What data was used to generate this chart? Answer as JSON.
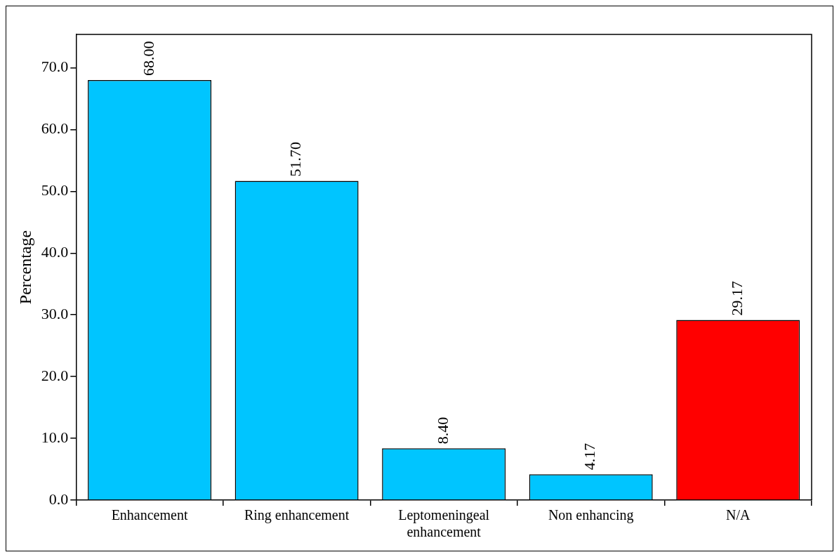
{
  "chart_data": {
    "type": "bar",
    "ylabel": "Percentage",
    "categories": [
      "Enhancement",
      "Ring enhancement",
      "Leptomeningeal enhancement",
      "Non enhancing",
      "N/A"
    ],
    "values": [
      68.0,
      51.7,
      8.4,
      4.17,
      29.17
    ],
    "value_labels": [
      "68.00",
      "51.70",
      "8.40",
      "4.17",
      "29.17"
    ],
    "colors": [
      "#00c5ff",
      "#00c5ff",
      "#00c5ff",
      "#00c5ff",
      "#ff0000"
    ],
    "ylim": [
      0,
      75.4
    ],
    "yticks": [
      {
        "value": 0,
        "label": "0.0"
      },
      {
        "value": 10,
        "label": "10.0"
      },
      {
        "value": 20,
        "label": "20.0"
      },
      {
        "value": 30,
        "label": "30.0"
      },
      {
        "value": 40,
        "label": "40.0"
      },
      {
        "value": 50,
        "label": "50.0"
      },
      {
        "value": 60,
        "label": "60.0"
      },
      {
        "value": 70,
        "label": "70.0"
      }
    ],
    "grid": false,
    "legend": false
  }
}
